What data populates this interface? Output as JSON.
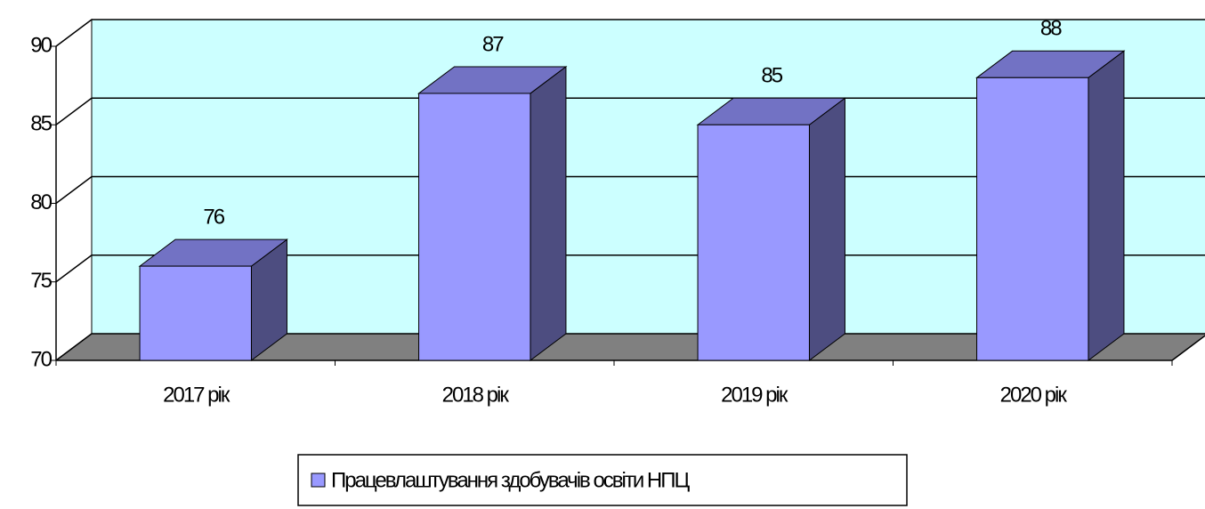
{
  "chart_data": {
    "type": "bar3d",
    "categories": [
      "2017  рік",
      "2018 рік",
      "2019 рік",
      "2020 рік"
    ],
    "series": [
      {
        "name": "Працевлаштування здобувачів освіти НПЦ",
        "color": "#9999ff",
        "values": [
          76,
          87,
          85,
          88
        ]
      }
    ],
    "ylim": [
      70,
      90
    ],
    "yticks": [
      70,
      75,
      80,
      85,
      90
    ],
    "grid": true,
    "legend": "bottom"
  }
}
